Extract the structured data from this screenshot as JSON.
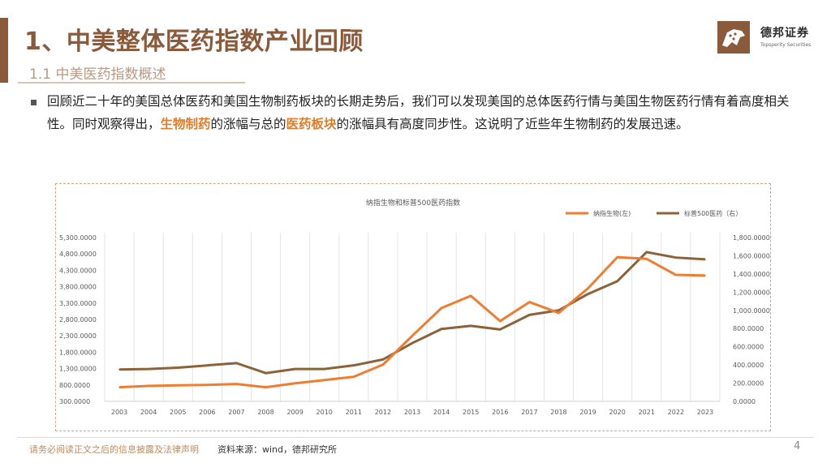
{
  "header": {
    "title": "1、中美整体医药指数产业回顾",
    "subtitle": "1.1 中美医药指数概述"
  },
  "logo": {
    "cn": "德邦证券",
    "en": "Topsperity Securities"
  },
  "body": {
    "part1": "回顾近二十年的美国总体医药和美国生物制药板块的长期走势后，我们可以发现美国的总体医药行情与美国生物医药行情有着高度相关性。同时观察得出，",
    "hl1": "生物制药",
    "part2": "的涨幅与总的",
    "hl2": "医药板块",
    "part3": "的涨幅具有高度同步性。这说明了近些年生物制药的发展迅速。"
  },
  "colors": {
    "brand": "#8a5a3a",
    "nasdaq_bio": "#ee7d31",
    "sp500_health": "#8c6239"
  },
  "chart_data": {
    "type": "line",
    "title": "纳指生物和标普500医药指数",
    "categories": [
      "2003",
      "2004",
      "2005",
      "2006",
      "2007",
      "2008",
      "2009",
      "2010",
      "2011",
      "2012",
      "2013",
      "2014",
      "2015",
      "2016",
      "2017",
      "2018",
      "2019",
      "2020",
      "2021",
      "2022",
      "2023"
    ],
    "series": [
      {
        "name": "纳指生物(左)",
        "axis": "left",
        "values": [
          730,
          770,
          790,
          800,
          830,
          730,
          850,
          950,
          1050,
          1420,
          2300,
          3150,
          3520,
          2750,
          3330,
          3000,
          3750,
          4700,
          4650,
          4160,
          4140
        ]
      },
      {
        "name": "标普500医药（右）",
        "axis": "right",
        "values": [
          350,
          355,
          370,
          395,
          420,
          310,
          355,
          355,
          395,
          460,
          640,
          795,
          830,
          790,
          950,
          1000,
          1180,
          1320,
          1640,
          1580,
          1560
        ]
      }
    ],
    "yleft_ticks": [
      "5,300.0000",
      "4,800.0000",
      "4,300.0000",
      "3,800.0000",
      "3,300.0000",
      "2,800.0000",
      "2,300.0000",
      "1,800.0000",
      "1,300.0000",
      "800.0000",
      "300.0000"
    ],
    "yleft_range": [
      300,
      5300
    ],
    "yright_ticks": [
      "1,800.0000",
      "1,600.0000",
      "1,400.0000",
      "1,200.0000",
      "1,000.0000",
      "800.0000",
      "600.0000",
      "400.0000",
      "200.0000",
      "0.0000"
    ],
    "yright_range": [
      0,
      1800
    ],
    "legend": "top-right",
    "grid": "vertical"
  },
  "footer": {
    "disclaimer": "请务必阅读正文之后的信息披露及法律声明",
    "source": "资料来源：wind，德邦研究所",
    "page": "4"
  }
}
